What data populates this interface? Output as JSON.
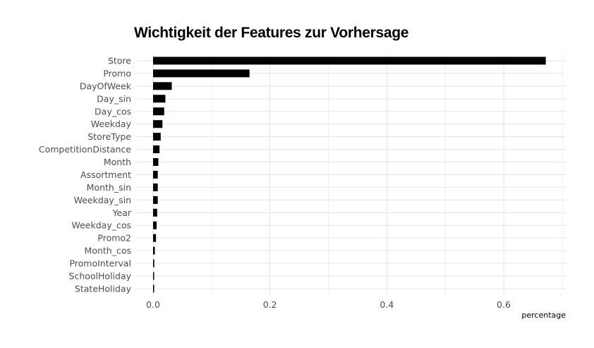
{
  "chart_data": {
    "type": "bar",
    "orientation": "horizontal",
    "title": "Wichtigkeit der Features zur Vorhersage",
    "xlabel": "percentage",
    "ylabel": "",
    "xlim": [
      -0.03,
      0.72
    ],
    "x_ticks": [
      "0.0",
      "0.2",
      "0.4",
      "0.6"
    ],
    "x_tick_values": [
      0.0,
      0.2,
      0.4,
      0.6
    ],
    "grid": true,
    "bar_color": "#000000",
    "categories": [
      "Store",
      "Promo",
      "DayOfWeek",
      "Day_sin",
      "Day_cos",
      "Weekday",
      "StoreType",
      "CompetitionDistance",
      "Month",
      "Assortment",
      "Month_sin",
      "Weekday_sin",
      "Year",
      "Weekday_cos",
      "Promo2",
      "Month_cos",
      "PromoInterval",
      "SchoolHoliday",
      "StateHoliday"
    ],
    "values": [
      0.672,
      0.165,
      0.032,
      0.021,
      0.019,
      0.016,
      0.013,
      0.011,
      0.009,
      0.008,
      0.008,
      0.008,
      0.007,
      0.006,
      0.005,
      0.003,
      0.002,
      0.001,
      0.0
    ]
  }
}
